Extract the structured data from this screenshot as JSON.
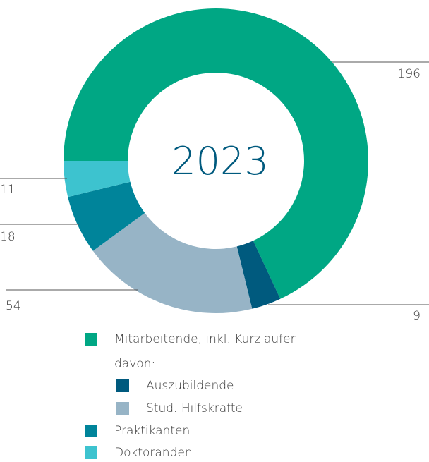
{
  "chart_data": {
    "type": "donut",
    "center_label": "2023",
    "categories": [
      "Mitarbeitende, inkl. Kurzläufer",
      "Auszubildende",
      "Stud. Hilfskräfte",
      "Praktikanten",
      "Doktoranden"
    ],
    "values": [
      196,
      9,
      54,
      18,
      11
    ],
    "colors": [
      "#00a784",
      "#005a7e",
      "#97b4c6",
      "#00849a",
      "#3dc3cf"
    ],
    "legend_subheading": "davon:"
  }
}
